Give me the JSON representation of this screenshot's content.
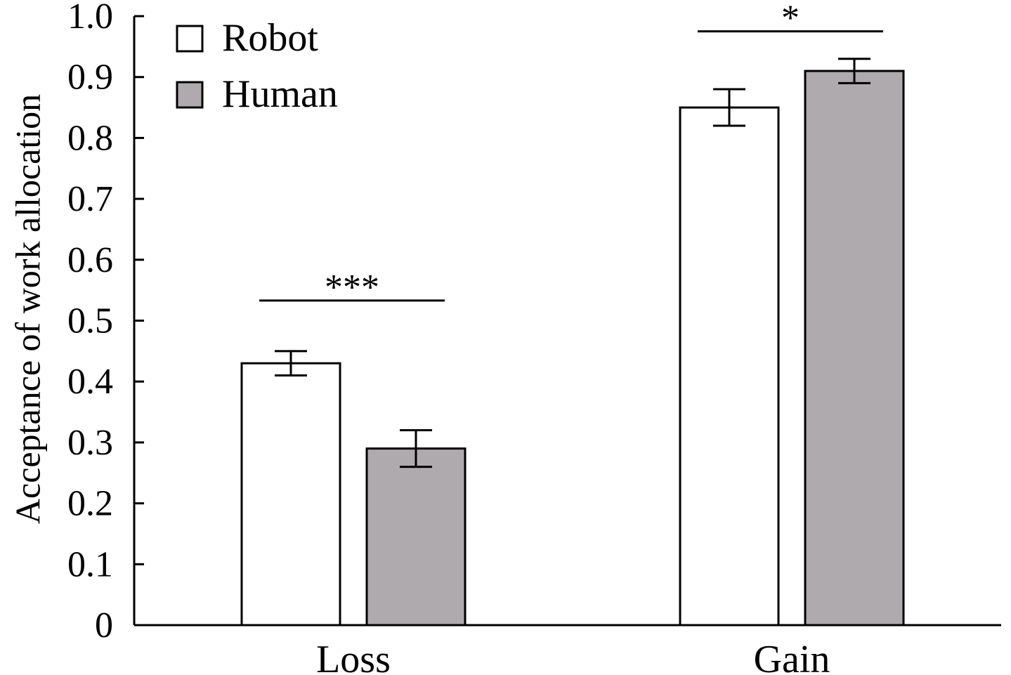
{
  "chart_data": {
    "type": "bar",
    "ylabel": "Acceptance of work allocation",
    "xlabel": "",
    "ylim": [
      0,
      1.0
    ],
    "yticks": [
      "0",
      "0.1",
      "0.2",
      "0.3",
      "0.4",
      "0.5",
      "0.6",
      "0.7",
      "0.8",
      "0.9",
      "1.0"
    ],
    "categories": [
      "Loss",
      "Gain"
    ],
    "series": [
      {
        "name": "Robot",
        "color": "#ffffff",
        "values": [
          0.43,
          0.85
        ],
        "errors": [
          0.02,
          0.03
        ]
      },
      {
        "name": "Human",
        "color": "#afaaad",
        "values": [
          0.29,
          0.91
        ],
        "errors": [
          0.03,
          0.02
        ]
      }
    ],
    "significance": [
      {
        "category": "Loss",
        "label": "***",
        "y": 0.533
      },
      {
        "category": "Gain",
        "label": "*",
        "y": 0.975
      }
    ],
    "grid": false,
    "legend_position": "top-left"
  }
}
